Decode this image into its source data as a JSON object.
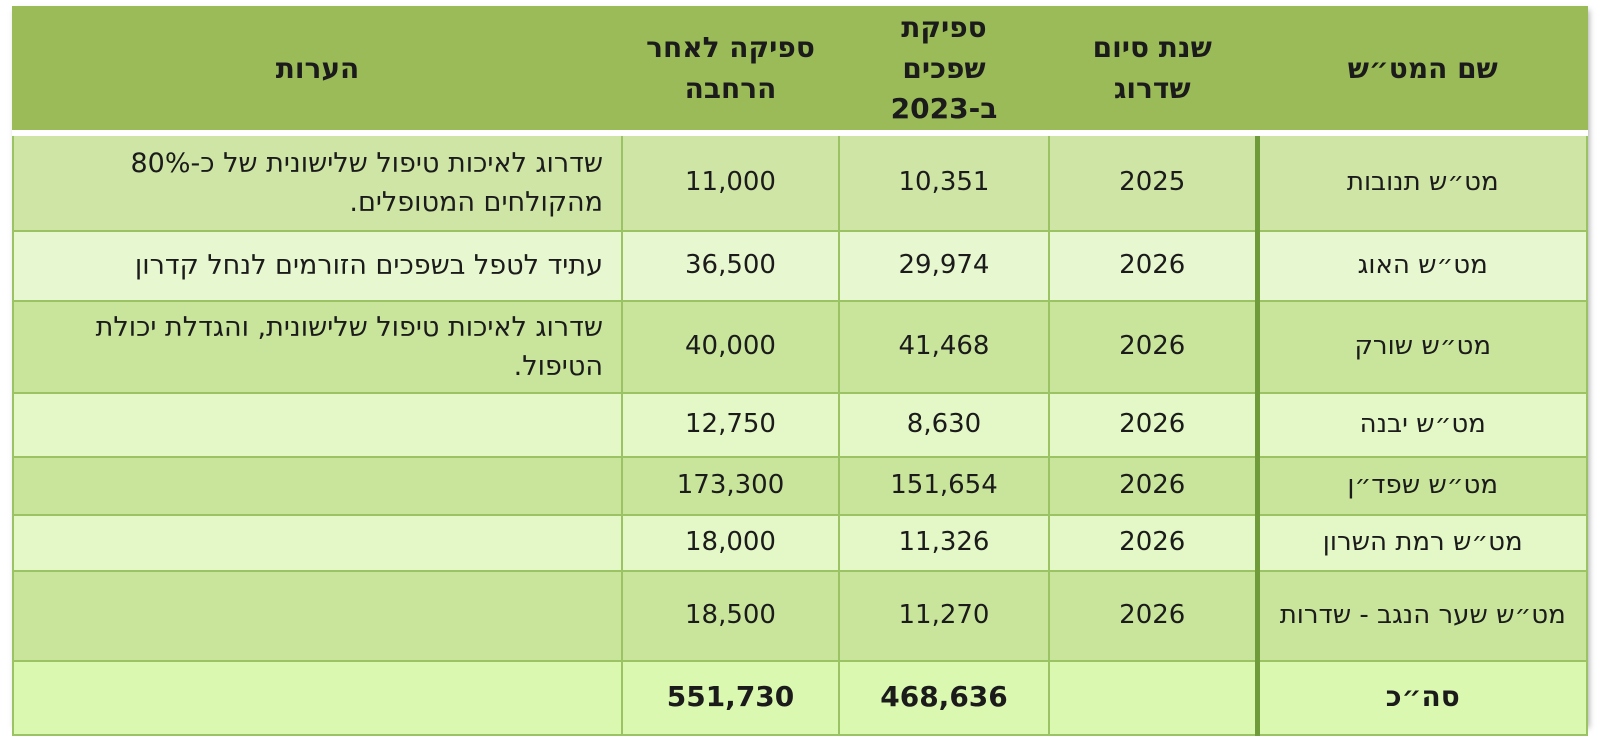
{
  "headers": {
    "name": "שם המט״ש",
    "year": "שנת סיום שדרוג",
    "capacity_2023": "ספיקת שפכים ב-2023",
    "capacity_after": "ספיקה לאחר הרחבה",
    "notes": "הערות"
  },
  "rows": [
    {
      "name": "מט״ש תנובות",
      "year": "2025",
      "capacity_2023": "10,351",
      "capacity_after": "11,000",
      "notes": "שדרוג לאיכות טיפול שלישונית של כ-80% מהקולחים המטופלים."
    },
    {
      "name": "מט״ש האוג",
      "year": "2026",
      "capacity_2023": "29,974",
      "capacity_after": "36,500",
      "notes": "עתיד לטפל בשפכים הזורמים לנחל קדרון"
    },
    {
      "name": "מט״ש שורק",
      "year": "2026",
      "capacity_2023": "41,468",
      "capacity_after": "40,000",
      "notes": "שדרוג לאיכות טיפול שלישונית, והגדלת יכולת הטיפול."
    },
    {
      "name": "מט״ש יבנה",
      "year": "2026",
      "capacity_2023": "8,630",
      "capacity_after": "12,750",
      "notes": ""
    },
    {
      "name": "מט״ש שפד״ן",
      "year": "2026",
      "capacity_2023": "151,654",
      "capacity_after": "173,300",
      "notes": ""
    },
    {
      "name": "מט״ש רמת השרון",
      "year": "2026",
      "capacity_2023": "11,326",
      "capacity_after": "18,000",
      "notes": ""
    },
    {
      "name": "מט״ש שער הנגב - שדרות",
      "year": "2026",
      "capacity_2023": "11,270",
      "capacity_after": "18,500",
      "notes": ""
    }
  ],
  "total": {
    "name": "סה״כ",
    "year": "",
    "capacity_2023": "468,636",
    "capacity_after": "551,730",
    "notes": ""
  }
}
